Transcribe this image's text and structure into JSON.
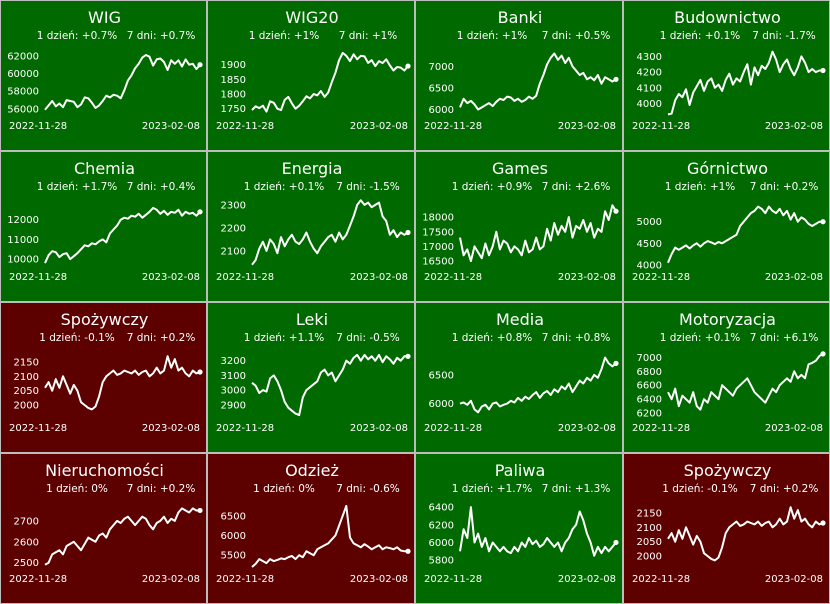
{
  "colors": {
    "up": "#006a00",
    "down": "#5c0000",
    "line": "#ffffff",
    "text": "#ffffff"
  },
  "chart_data": [
    {
      "type": "line",
      "title": "WIG",
      "d1_label": "1 dzień: +0.7%",
      "d7_label": "7 dni: +0.7%",
      "trend": "up",
      "x_start": "2022-11-28",
      "x_end": "2023-02-08",
      "yticks": [
        56000,
        58000,
        60000,
        62000
      ],
      "tick_labels": [
        "56000",
        "58000",
        "60000",
        "62000"
      ],
      "ylim": [
        55200,
        63000
      ],
      "values": [
        55900,
        56400,
        56900,
        56300,
        56600,
        56200,
        57000,
        56900,
        56800,
        56200,
        56500,
        57300,
        57200,
        56700,
        56100,
        56400,
        56900,
        57500,
        57300,
        57600,
        57500,
        57200,
        58100,
        59200,
        59800,
        60600,
        61100,
        61800,
        62100,
        61900,
        60900,
        61600,
        61700,
        61300,
        60400,
        61500,
        61100,
        61500,
        60800,
        61600,
        61000,
        61100,
        60500,
        61000
      ]
    },
    {
      "type": "line",
      "title": "WIG20",
      "d1_label": "1 dzień: +1%",
      "d7_label": "7 dni: +1%",
      "trend": "up",
      "x_start": "2022-11-28",
      "x_end": "2023-02-08",
      "yticks": [
        1750,
        1800,
        1850,
        1900
      ],
      "tick_labels": [
        "1750",
        "1800",
        "1850",
        "1900"
      ],
      "ylim": [
        1725,
        1960
      ],
      "values": [
        1745,
        1758,
        1752,
        1760,
        1740,
        1775,
        1770,
        1750,
        1745,
        1780,
        1790,
        1768,
        1750,
        1760,
        1775,
        1792,
        1785,
        1800,
        1795,
        1810,
        1790,
        1805,
        1840,
        1872,
        1915,
        1940,
        1930,
        1912,
        1935,
        1918,
        1930,
        1928,
        1906,
        1915,
        1895,
        1912,
        1905,
        1918,
        1897,
        1880,
        1892,
        1890,
        1880,
        1895
      ]
    },
    {
      "type": "line",
      "title": "Banki",
      "d1_label": "1 dzień: +1%",
      "d7_label": "7 dni: +0.5%",
      "trend": "up",
      "x_start": "2022-11-28",
      "x_end": "2023-02-08",
      "yticks": [
        6000,
        6500,
        7000
      ],
      "tick_labels": [
        "6000",
        "6500",
        "7000"
      ],
      "ylim": [
        5850,
        7450
      ],
      "values": [
        6050,
        6250,
        6150,
        6200,
        6120,
        6000,
        6050,
        6100,
        6150,
        6080,
        6180,
        6250,
        6220,
        6300,
        6280,
        6200,
        6250,
        6180,
        6220,
        6300,
        6250,
        6320,
        6600,
        6800,
        7050,
        7200,
        7300,
        7150,
        7250,
        7080,
        7200,
        7000,
        6900,
        6800,
        6850,
        6700,
        6750,
        6680,
        6800,
        6600,
        6750,
        6700,
        6650,
        6700
      ]
    },
    {
      "type": "line",
      "title": "Budownictwo",
      "d1_label": "1 dzień: +0.1%",
      "d7_label": "7 dni: -1.7%",
      "trend": "up",
      "x_start": "2022-11-28",
      "x_end": "2023-02-08",
      "yticks": [
        4000,
        4100,
        4200,
        4300
      ],
      "tick_labels": [
        "4000",
        "4100",
        "4200",
        "4300"
      ],
      "ylim": [
        3920,
        4360
      ],
      "values": [
        3930,
        3935,
        4020,
        4060,
        4040,
        4090,
        3990,
        4070,
        4110,
        4150,
        4080,
        4140,
        4160,
        4100,
        4120,
        4080,
        4150,
        4190,
        4120,
        4160,
        4140,
        4200,
        4250,
        4120,
        4230,
        4180,
        4240,
        4220,
        4260,
        4330,
        4280,
        4200,
        4250,
        4280,
        4220,
        4180,
        4230,
        4300,
        4260,
        4200,
        4220,
        4200,
        4210,
        4210
      ]
    },
    {
      "type": "line",
      "title": "Chemia",
      "d1_label": "1 dzień: +1.7%",
      "d7_label": "7 dni: +0.4%",
      "trend": "up",
      "x_start": "2022-11-28",
      "x_end": "2023-02-08",
      "yticks": [
        10000,
        11000,
        12000
      ],
      "tick_labels": [
        "10000",
        "11000",
        "12000"
      ],
      "ylim": [
        9600,
        13100
      ],
      "values": [
        9800,
        10200,
        10400,
        10350,
        10100,
        10250,
        10300,
        10000,
        10150,
        10300,
        10500,
        10700,
        10650,
        10800,
        10750,
        10900,
        11000,
        10850,
        11300,
        11500,
        11700,
        12000,
        12100,
        12050,
        12200,
        12150,
        12300,
        12100,
        12250,
        12400,
        12600,
        12500,
        12300,
        12450,
        12250,
        12400,
        12350,
        12500,
        12200,
        12400,
        12300,
        12350,
        12200,
        12400
      ]
    },
    {
      "type": "line",
      "title": "Energia",
      "d1_label": "1 dzień: +0.1%",
      "d7_label": "7 dni: -1.5%",
      "trend": "up",
      "x_start": "2022-11-28",
      "x_end": "2023-02-08",
      "yticks": [
        2100,
        2200,
        2300
      ],
      "tick_labels": [
        "2100",
        "2200",
        "2300"
      ],
      "ylim": [
        2030,
        2330
      ],
      "values": [
        2040,
        2060,
        2110,
        2140,
        2100,
        2150,
        2130,
        2090,
        2160,
        2120,
        2150,
        2170,
        2140,
        2130,
        2150,
        2180,
        2140,
        2110,
        2090,
        2120,
        2140,
        2160,
        2170,
        2140,
        2180,
        2150,
        2170,
        2210,
        2250,
        2300,
        2320,
        2300,
        2310,
        2290,
        2300,
        2310,
        2250,
        2230,
        2170,
        2190,
        2160,
        2180,
        2170,
        2180
      ]
    },
    {
      "type": "line",
      "title": "Games",
      "d1_label": "1 dzień: +0.9%",
      "d7_label": "7 dni: +2.6%",
      "trend": "up",
      "x_start": "2022-11-28",
      "x_end": "2023-02-08",
      "yticks": [
        16500,
        17000,
        17500,
        18000
      ],
      "tick_labels": [
        "16500",
        "17000",
        "17500",
        "18000"
      ],
      "ylim": [
        16300,
        18650
      ],
      "values": [
        17300,
        16700,
        16900,
        16500,
        17000,
        16800,
        16600,
        17100,
        16700,
        17000,
        17500,
        16900,
        17200,
        17100,
        16800,
        17000,
        16900,
        16700,
        17200,
        16800,
        16900,
        17300,
        16900,
        17000,
        17600,
        17200,
        17800,
        17400,
        17700,
        17500,
        18000,
        17300,
        17700,
        17600,
        17900,
        17500,
        17800,
        17300,
        17600,
        17500,
        18200,
        17900,
        18400,
        18200
      ]
    },
    {
      "type": "line",
      "title": "Górnictwo",
      "d1_label": "1 dzień: +1%",
      "d7_label": "7 dni: +0.2%",
      "trend": "up",
      "x_start": "2022-11-28",
      "x_end": "2023-02-08",
      "yticks": [
        4000,
        4500,
        5000
      ],
      "tick_labels": [
        "4000",
        "4500",
        "5000"
      ],
      "ylim": [
        3950,
        5550
      ],
      "values": [
        4050,
        4250,
        4400,
        4350,
        4400,
        4450,
        4380,
        4450,
        4500,
        4420,
        4500,
        4550,
        4520,
        4480,
        4530,
        4500,
        4550,
        4600,
        4650,
        4700,
        4900,
        5000,
        5100,
        5200,
        5250,
        5350,
        5300,
        5200,
        5350,
        5250,
        5200,
        5300,
        5150,
        5250,
        5050,
        5200,
        5000,
        5100,
        5050,
        4950,
        4900,
        4950,
        5000,
        5000
      ]
    },
    {
      "type": "line",
      "title": "Spożywczy",
      "d1_label": "1 dzień: -0.1%",
      "d7_label": "7 dni: +0.2%",
      "trend": "down",
      "x_start": "2022-11-28",
      "x_end": "2023-02-08",
      "yticks": [
        2000,
        2050,
        2100,
        2150
      ],
      "tick_labels": [
        "2000",
        "2050",
        "2100",
        "2150"
      ],
      "ylim": [
        1955,
        2195
      ],
      "values": [
        2060,
        2080,
        2050,
        2090,
        2060,
        2100,
        2070,
        2040,
        2070,
        2050,
        2010,
        2000,
        1990,
        1985,
        1995,
        2030,
        2080,
        2100,
        2110,
        2120,
        2105,
        2110,
        2120,
        2115,
        2110,
        2120,
        2105,
        2115,
        2120,
        2100,
        2110,
        2130,
        2110,
        2120,
        2170,
        2130,
        2160,
        2120,
        2130,
        2110,
        2100,
        2120,
        2110,
        2115
      ]
    },
    {
      "type": "line",
      "title": "Leki",
      "d1_label": "1 dzień: +1.1%",
      "d7_label": "7 dni: -0.5%",
      "trend": "up",
      "x_start": "2022-11-28",
      "x_end": "2023-02-08",
      "yticks": [
        2900,
        3000,
        3100,
        3200
      ],
      "tick_labels": [
        "2900",
        "3000",
        "3100",
        "3200"
      ],
      "ylim": [
        2810,
        3280
      ],
      "values": [
        3050,
        3030,
        2980,
        3000,
        2990,
        3080,
        3100,
        3060,
        3000,
        2920,
        2880,
        2860,
        2840,
        2830,
        2950,
        3000,
        3020,
        3040,
        3060,
        3120,
        3140,
        3100,
        3120,
        3060,
        3100,
        3140,
        3200,
        3180,
        3220,
        3240,
        3200,
        3240,
        3210,
        3230,
        3200,
        3240,
        3190,
        3230,
        3210,
        3180,
        3220,
        3200,
        3230,
        3230
      ]
    },
    {
      "type": "line",
      "title": "Media",
      "d1_label": "1 dzień: +0.8%",
      "d7_label": "7 dni: +0.8%",
      "trend": "up",
      "x_start": "2022-11-28",
      "x_end": "2023-02-08",
      "yticks": [
        6000,
        6500
      ],
      "tick_labels": [
        "6000",
        "6500"
      ],
      "ylim": [
        5750,
        6950
      ],
      "values": [
        6000,
        6020,
        5980,
        6050,
        5900,
        5850,
        5950,
        5980,
        5900,
        6000,
        6020,
        5950,
        5980,
        6000,
        6050,
        6020,
        6100,
        6050,
        6120,
        6080,
        6150,
        6200,
        6100,
        6180,
        6220,
        6150,
        6250,
        6200,
        6300,
        6250,
        6350,
        6200,
        6300,
        6400,
        6350,
        6450,
        6400,
        6500,
        6450,
        6600,
        6800,
        6700,
        6650,
        6700
      ]
    },
    {
      "type": "line",
      "title": "Motoryzacja",
      "d1_label": "1 dzień: +0.1%",
      "d7_label": "7 dni: +6.1%",
      "trend": "up",
      "x_start": "2022-11-28",
      "x_end": "2023-02-08",
      "yticks": [
        6200,
        6400,
        6600,
        6800,
        7000
      ],
      "tick_labels": [
        "6200",
        "6400",
        "6600",
        "6800",
        "7000"
      ],
      "ylim": [
        6130,
        7120
      ],
      "values": [
        6500,
        6400,
        6550,
        6300,
        6450,
        6400,
        6350,
        6500,
        6300,
        6250,
        6400,
        6350,
        6500,
        6450,
        6400,
        6600,
        6550,
        6500,
        6450,
        6550,
        6600,
        6650,
        6700,
        6600,
        6500,
        6450,
        6400,
        6350,
        6450,
        6550,
        6500,
        6600,
        6650,
        6700,
        6650,
        6800,
        6700,
        6750,
        6700,
        6900,
        6920,
        6950,
        7020,
        7050
      ]
    },
    {
      "type": "line",
      "title": "Nieruchomości",
      "d1_label": "1 dzień: 0%",
      "d7_label": "7 dni: +0.2%",
      "trend": "down",
      "x_start": "2022-11-28",
      "x_end": "2023-02-08",
      "yticks": [
        2500,
        2600,
        2700
      ],
      "tick_labels": [
        "2500",
        "2600",
        "2700"
      ],
      "ylim": [
        2470,
        2800
      ],
      "values": [
        2490,
        2500,
        2540,
        2550,
        2560,
        2540,
        2580,
        2590,
        2600,
        2580,
        2560,
        2590,
        2620,
        2610,
        2600,
        2630,
        2640,
        2620,
        2660,
        2680,
        2700,
        2690,
        2710,
        2720,
        2700,
        2680,
        2700,
        2720,
        2710,
        2680,
        2660,
        2690,
        2700,
        2720,
        2690,
        2710,
        2700,
        2740,
        2760,
        2750,
        2740,
        2760,
        2750,
        2750
      ]
    },
    {
      "type": "line",
      "title": "Odzież",
      "d1_label": "1 dzień: 0%",
      "d7_label": "7 dni: -0.6%",
      "trend": "down",
      "x_start": "2022-11-28",
      "x_end": "2023-02-08",
      "yticks": [
        5500,
        6000,
        6500
      ],
      "tick_labels": [
        "5500",
        "6000",
        "6500"
      ],
      "ylim": [
        5150,
        6900
      ],
      "values": [
        5200,
        5280,
        5400,
        5350,
        5300,
        5400,
        5350,
        5380,
        5420,
        5400,
        5450,
        5480,
        5400,
        5500,
        5450,
        5600,
        5550,
        5500,
        5650,
        5700,
        5750,
        5800,
        5900,
        6000,
        6250,
        6500,
        6750,
        5950,
        5800,
        5750,
        5700,
        5780,
        5720,
        5650,
        5700,
        5750,
        5650,
        5700,
        5680,
        5650,
        5700,
        5620,
        5600,
        5600
      ]
    },
    {
      "type": "line",
      "title": "Paliwa",
      "d1_label": "1 dzień: +1.7%",
      "d7_label": "7 dni: +1.3%",
      "trend": "up",
      "x_start": "2022-11-28",
      "x_end": "2023-02-08",
      "yticks": [
        5800,
        6000,
        6200,
        6400
      ],
      "tick_labels": [
        "5800",
        "6000",
        "6200",
        "6400"
      ],
      "ylim": [
        5700,
        6480
      ],
      "values": [
        5900,
        6150,
        6050,
        6400,
        6000,
        6100,
        5950,
        6050,
        5900,
        6000,
        5950,
        5900,
        5950,
        5900,
        5880,
        5950,
        5900,
        6000,
        5950,
        6050,
        5980,
        6020,
        5950,
        5980,
        6050,
        6000,
        5950,
        6000,
        5900,
        6000,
        6050,
        6150,
        6200,
        6350,
        6250,
        6100,
        6000,
        5850,
        5950,
        5880,
        5950,
        5900,
        5950,
        6000
      ]
    },
    {
      "type": "line",
      "title": "Spożywczy",
      "d1_label": "1 dzień: -0.1%",
      "d7_label": "7 dni: +0.2%",
      "trend": "down",
      "x_start": "2022-11-28",
      "x_end": "2023-02-08",
      "yticks": [
        2000,
        2050,
        2100,
        2150
      ],
      "tick_labels": [
        "2000",
        "2050",
        "2100",
        "2150"
      ],
      "ylim": [
        1955,
        2195
      ],
      "values": [
        2060,
        2080,
        2050,
        2090,
        2060,
        2100,
        2070,
        2040,
        2070,
        2050,
        2010,
        2000,
        1990,
        1985,
        1995,
        2030,
        2080,
        2100,
        2110,
        2120,
        2105,
        2110,
        2120,
        2115,
        2110,
        2120,
        2105,
        2115,
        2120,
        2100,
        2110,
        2130,
        2110,
        2120,
        2170,
        2130,
        2160,
        2120,
        2130,
        2110,
        2100,
        2120,
        2110,
        2115
      ]
    }
  ]
}
